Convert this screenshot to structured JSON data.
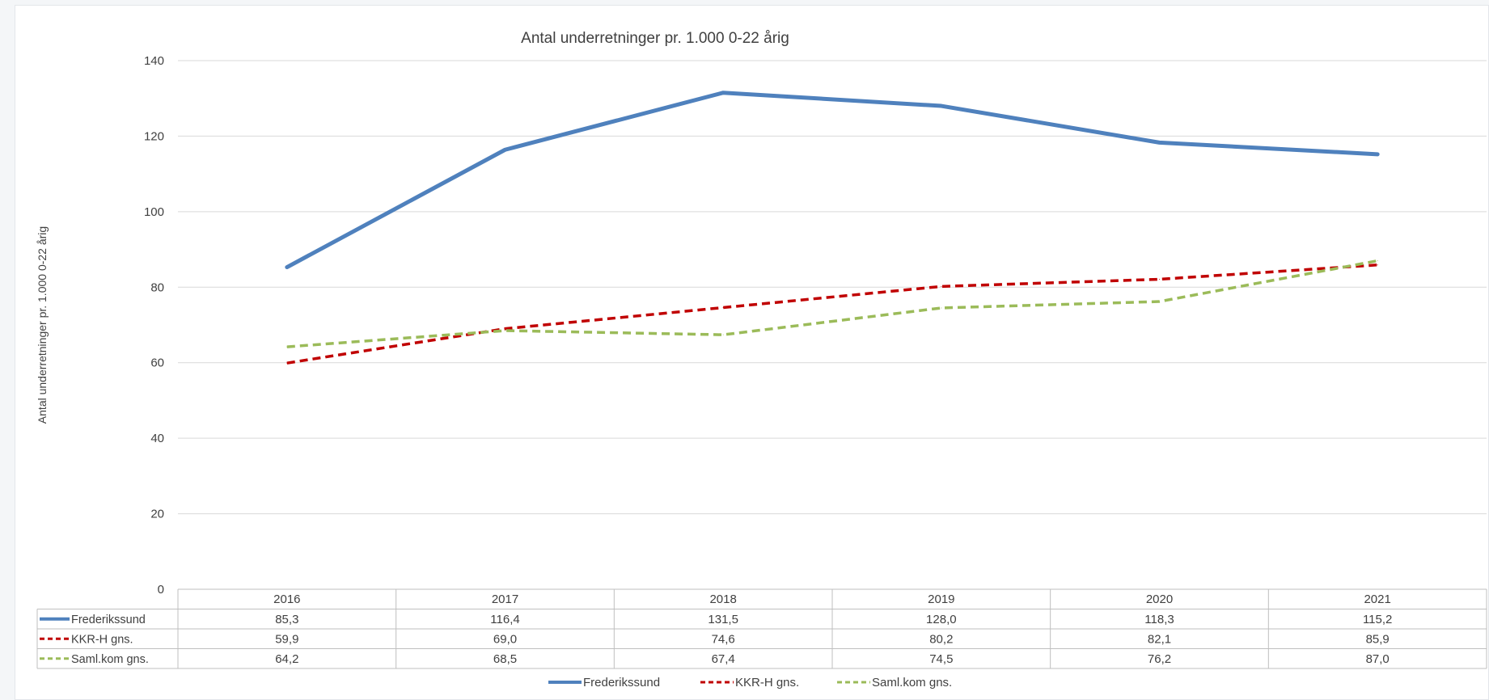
{
  "chart_data": {
    "type": "line",
    "title": "Antal underretninger pr. 1.000 0-22 årig",
    "ylabel": "Antal underretninger pr. 1.000 0-22 årig",
    "xlabel": "",
    "categories": [
      "2016",
      "2017",
      "2018",
      "2019",
      "2020",
      "2021"
    ],
    "ylim": [
      0,
      140
    ],
    "yticks": [
      0,
      20,
      40,
      60,
      80,
      100,
      120,
      140
    ],
    "grid": true,
    "legend_position": "bottom",
    "data_table": true,
    "series": [
      {
        "name": "Frederikssund",
        "values": [
          85.3,
          116.4,
          131.5,
          128.0,
          118.3,
          115.2
        ],
        "display": [
          "85,3",
          "116,4",
          "131,5",
          "128,0",
          "118,3",
          "115,2"
        ],
        "color": "#4f81bd",
        "style": "solid"
      },
      {
        "name": "KKR-H gns.",
        "values": [
          59.9,
          69.0,
          74.6,
          80.2,
          82.1,
          85.9
        ],
        "display": [
          "59,9",
          "69,0",
          "74,6",
          "80,2",
          "82,1",
          "85,9"
        ],
        "color": "#c00000",
        "style": "dashed"
      },
      {
        "name": "Saml.kom gns.",
        "values": [
          64.2,
          68.5,
          67.4,
          74.5,
          76.2,
          87.0
        ],
        "display": [
          "64,2",
          "68,5",
          "67,4",
          "74,5",
          "76,2",
          "87,0"
        ],
        "color": "#9bbb59",
        "style": "dashed"
      }
    ]
  }
}
